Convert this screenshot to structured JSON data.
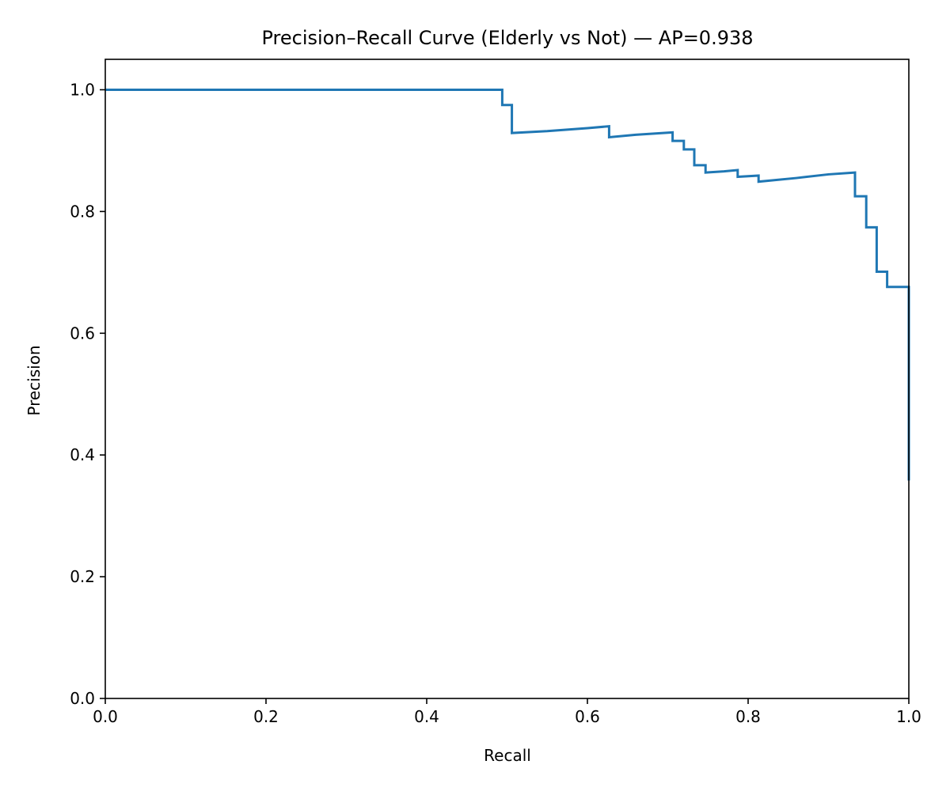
{
  "chart_data": {
    "type": "line",
    "title": "Precision–Recall Curve (Elderly vs Not) — AP=0.938",
    "xlabel": "Recall",
    "ylabel": "Precision",
    "xlim": [
      0.0,
      1.0
    ],
    "ylim": [
      0.0,
      1.05
    ],
    "x_ticks": [
      "0.0",
      "0.2",
      "0.4",
      "0.6",
      "0.8",
      "1.0"
    ],
    "y_ticks": [
      "0.0",
      "0.2",
      "0.4",
      "0.6",
      "0.8",
      "1.0"
    ],
    "grid": false,
    "legend": "none",
    "line_color": "#1f77b4",
    "series": [
      {
        "drawstyle": "steps",
        "points": [
          [
            0.0,
            1.0
          ],
          [
            0.494,
            1.0
          ],
          [
            0.494,
            0.975
          ],
          [
            0.506,
            0.975
          ],
          [
            0.506,
            0.929
          ],
          [
            0.55,
            0.932
          ],
          [
            0.6,
            0.937
          ],
          [
            0.627,
            0.94
          ],
          [
            0.627,
            0.922
          ],
          [
            0.66,
            0.926
          ],
          [
            0.706,
            0.93
          ],
          [
            0.706,
            0.916
          ],
          [
            0.72,
            0.916
          ],
          [
            0.72,
            0.902
          ],
          [
            0.733,
            0.902
          ],
          [
            0.733,
            0.876
          ],
          [
            0.747,
            0.876
          ],
          [
            0.747,
            0.864
          ],
          [
            0.77,
            0.866
          ],
          [
            0.787,
            0.868
          ],
          [
            0.787,
            0.857
          ],
          [
            0.813,
            0.859
          ],
          [
            0.813,
            0.849
          ],
          [
            0.86,
            0.855
          ],
          [
            0.9,
            0.861
          ],
          [
            0.933,
            0.864
          ],
          [
            0.933,
            0.825
          ],
          [
            0.947,
            0.825
          ],
          [
            0.947,
            0.774
          ],
          [
            0.96,
            0.774
          ],
          [
            0.96,
            0.701
          ],
          [
            0.973,
            0.701
          ],
          [
            0.973,
            0.676
          ],
          [
            1.0,
            0.676
          ],
          [
            1.0,
            0.358
          ]
        ]
      }
    ]
  }
}
